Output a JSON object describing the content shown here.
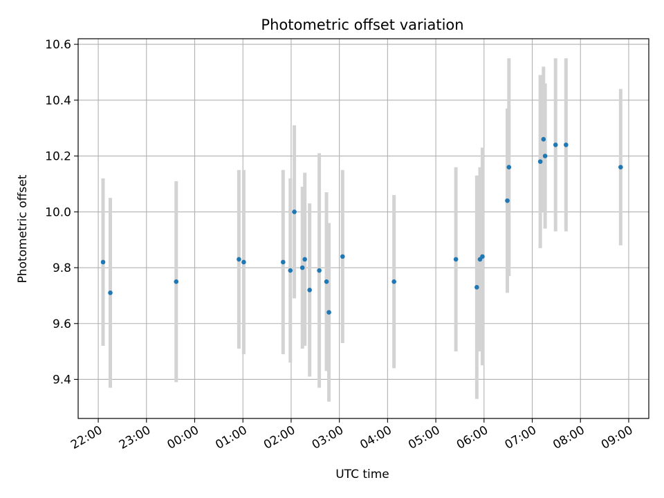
{
  "chart_data": {
    "type": "scatter",
    "title": "Photometric offset variation",
    "xlabel": "UTC time",
    "ylabel": "Photometric offset",
    "x_axis_type": "time",
    "xlim": [
      "21:35",
      "09:25"
    ],
    "ylim": [
      9.26,
      10.62
    ],
    "grid": true,
    "marker_color": "#1f77b4",
    "errorbar_color": "#d3d3d3",
    "x_ticks": [
      "22:00",
      "23:00",
      "00:00",
      "01:00",
      "02:00",
      "03:00",
      "04:00",
      "05:00",
      "06:00",
      "07:00",
      "08:00",
      "09:00"
    ],
    "y_ticks": [
      "9.4",
      "9.6",
      "9.8",
      "10.0",
      "10.2",
      "10.4",
      "10.6"
    ],
    "points": [
      {
        "x": "22:06",
        "y": 9.82,
        "err": 0.3
      },
      {
        "x": "22:15",
        "y": 9.71,
        "err": 0.34
      },
      {
        "x": "23:37",
        "y": 9.75,
        "err": 0.36
      },
      {
        "x": "00:55",
        "y": 9.83,
        "err": 0.32
      },
      {
        "x": "01:01",
        "y": 9.82,
        "err": 0.33
      },
      {
        "x": "01:50",
        "y": 9.82,
        "err": 0.33
      },
      {
        "x": "01:59",
        "y": 9.79,
        "err": 0.33
      },
      {
        "x": "02:04",
        "y": 10.0,
        "err": 0.31
      },
      {
        "x": "02:14",
        "y": 9.8,
        "err": 0.29
      },
      {
        "x": "02:17",
        "y": 9.83,
        "err": 0.31
      },
      {
        "x": "02:23",
        "y": 9.72,
        "err": 0.31
      },
      {
        "x": "02:35",
        "y": 9.79,
        "err": 0.42
      },
      {
        "x": "02:44",
        "y": 9.75,
        "err": 0.32
      },
      {
        "x": "02:47",
        "y": 9.64,
        "err": 0.32
      },
      {
        "x": "03:04",
        "y": 9.84,
        "err": 0.31
      },
      {
        "x": "04:08",
        "y": 9.75,
        "err": 0.31
      },
      {
        "x": "05:25",
        "y": 9.83,
        "err": 0.33
      },
      {
        "x": "05:51",
        "y": 9.73,
        "err": 0.4
      },
      {
        "x": "05:55",
        "y": 9.83,
        "err": 0.33
      },
      {
        "x": "05:58",
        "y": 9.84,
        "err": 0.39
      },
      {
        "x": "06:29",
        "y": 10.04,
        "err": 0.33
      },
      {
        "x": "06:31",
        "y": 10.16,
        "err": 0.39
      },
      {
        "x": "07:10",
        "y": 10.18,
        "err": 0.31
      },
      {
        "x": "07:14",
        "y": 10.26,
        "err": 0.26
      },
      {
        "x": "07:16",
        "y": 10.2,
        "err": 0.26
      },
      {
        "x": "07:29",
        "y": 10.24,
        "err": 0.31
      },
      {
        "x": "07:42",
        "y": 10.24,
        "err": 0.31
      },
      {
        "x": "08:50",
        "y": 10.16,
        "err": 0.28
      }
    ]
  }
}
